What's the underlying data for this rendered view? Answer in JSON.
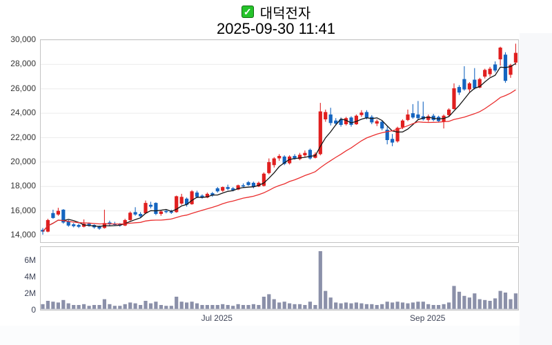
{
  "header": {
    "checkbox_glyph": "✓",
    "stock_name": "대덕전자",
    "timestamp": "2025-09-30 11:41"
  },
  "chart_data": {
    "type": "candlestick_with_volume",
    "title": "대덕전자",
    "datetime_label": "2025-09-30 11:41",
    "legend_position": "none",
    "grid": "horizontal-only",
    "price_axis": {
      "min": 14000,
      "max": 30000,
      "tick_values": [
        30000,
        28000,
        26000,
        24000,
        22000,
        20000,
        18000,
        16000,
        14000
      ],
      "tick_labels": [
        "30,000",
        "28,000",
        "26,000",
        "24,000",
        "22,000",
        "20,000",
        "18,000",
        "16,000",
        "14,000"
      ]
    },
    "volume_axis": {
      "min": 0,
      "max_visible": 7000000,
      "tick_values": [
        6000000,
        4000000,
        2000000,
        0
      ],
      "tick_labels": [
        "6M",
        "4M",
        "2M",
        "0"
      ]
    },
    "x_axis": {
      "labels": [
        {
          "text": "Jul 2025",
          "index": 34
        },
        {
          "text": "Sep 2025",
          "index": 75
        }
      ]
    },
    "candle_format": [
      "open",
      "high",
      "low",
      "close",
      "volume_millions"
    ],
    "candles": [
      [
        14450,
        14600,
        14050,
        14300,
        0.6
      ],
      [
        14300,
        15350,
        14250,
        15250,
        1.0
      ],
      [
        15820,
        16100,
        15350,
        15420,
        0.9
      ],
      [
        15700,
        16250,
        15600,
        16000,
        0.8
      ],
      [
        16100,
        16150,
        14950,
        15050,
        1.1
      ],
      [
        15150,
        15250,
        14700,
        14800,
        0.7
      ],
      [
        14900,
        15000,
        14650,
        14750,
        0.5
      ],
      [
        14850,
        14950,
        14600,
        14700,
        0.5
      ],
      [
        14700,
        15300,
        14650,
        14950,
        0.6
      ],
      [
        14950,
        15050,
        14700,
        14780,
        0.4
      ],
      [
        14850,
        14900,
        14550,
        14650,
        0.5
      ],
      [
        14700,
        14800,
        14450,
        14550,
        0.5
      ],
      [
        14600,
        16100,
        14550,
        15000,
        1.2
      ],
      [
        15050,
        15200,
        14800,
        14900,
        0.6
      ],
      [
        14950,
        15100,
        14800,
        14850,
        0.4
      ],
      [
        14900,
        15000,
        14700,
        14800,
        0.4
      ],
      [
        14800,
        15350,
        14750,
        15250,
        0.6
      ],
      [
        15250,
        15950,
        15200,
        15850,
        0.8
      ],
      [
        15900,
        16300,
        15600,
        15700,
        0.7
      ],
      [
        15750,
        15900,
        15450,
        15550,
        0.5
      ],
      [
        15800,
        16850,
        15750,
        16650,
        1.0
      ],
      [
        16500,
        16750,
        16200,
        16350,
        0.7
      ],
      [
        16650,
        16700,
        15650,
        15750,
        0.9
      ],
      [
        15750,
        16050,
        15600,
        15950,
        0.5
      ],
      [
        16000,
        16150,
        15800,
        15900,
        0.4
      ],
      [
        15950,
        16100,
        15750,
        15850,
        0.4
      ],
      [
        15900,
        17250,
        15850,
        17200,
        1.5
      ],
      [
        16600,
        17400,
        16500,
        17150,
        0.9
      ],
      [
        17000,
        17100,
        16350,
        16500,
        0.8
      ],
      [
        16550,
        17700,
        16500,
        17600,
        0.9
      ],
      [
        17500,
        17650,
        17050,
        17150,
        0.7
      ],
      [
        17250,
        17350,
        17000,
        17100,
        0.5
      ],
      [
        17100,
        17500,
        17050,
        17400,
        0.5
      ],
      [
        17450,
        17550,
        17150,
        17250,
        0.5
      ],
      [
        17850,
        17950,
        17500,
        17600,
        0.5
      ],
      [
        17650,
        18000,
        17550,
        17950,
        0.6
      ],
      [
        17950,
        18150,
        17700,
        17800,
        0.5
      ],
      [
        17850,
        17950,
        17600,
        17700,
        0.4
      ],
      [
        17750,
        18150,
        17700,
        18100,
        0.6
      ],
      [
        18100,
        18250,
        17900,
        18000,
        0.5
      ],
      [
        18350,
        18450,
        18050,
        18120,
        0.5
      ],
      [
        18300,
        18400,
        17850,
        17950,
        0.6
      ],
      [
        18000,
        18400,
        17950,
        18300,
        0.5
      ],
      [
        18050,
        19150,
        18000,
        19050,
        1.5
      ],
      [
        19100,
        20300,
        19000,
        20000,
        1.8
      ],
      [
        19750,
        20400,
        19550,
        20300,
        1.2
      ],
      [
        20300,
        20650,
        20100,
        20500,
        0.8
      ],
      [
        20450,
        20550,
        19750,
        19850,
        0.9
      ],
      [
        19900,
        20550,
        19800,
        20450,
        0.7
      ],
      [
        20500,
        20650,
        20200,
        20300,
        0.6
      ],
      [
        20250,
        20750,
        20150,
        20600,
        0.6
      ],
      [
        20550,
        20950,
        20400,
        20750,
        0.5
      ],
      [
        21000,
        21100,
        20200,
        20300,
        0.9
      ],
      [
        20350,
        20800,
        20300,
        20650,
        0.5
      ],
      [
        20650,
        24850,
        20550,
        24150,
        7.0
      ],
      [
        23500,
        24300,
        23300,
        24100,
        2.2
      ],
      [
        23900,
        24450,
        23000,
        23200,
        1.4
      ],
      [
        23400,
        23600,
        23000,
        23150,
        0.8
      ],
      [
        23500,
        23650,
        22900,
        23050,
        0.7
      ],
      [
        23100,
        23700,
        23000,
        23600,
        0.8
      ],
      [
        23650,
        23750,
        22900,
        23050,
        0.7
      ],
      [
        23100,
        23900,
        23050,
        23800,
        0.8
      ],
      [
        23850,
        24250,
        23700,
        24050,
        0.7
      ],
      [
        24100,
        24250,
        23500,
        23650,
        0.6
      ],
      [
        23700,
        23850,
        23100,
        23250,
        0.6
      ],
      [
        23150,
        23500,
        22950,
        23350,
        0.5
      ],
      [
        23300,
        23400,
        22600,
        22750,
        0.6
      ],
      [
        22650,
        22900,
        21450,
        21800,
        0.9
      ],
      [
        21900,
        22300,
        21300,
        21600,
        0.8
      ],
      [
        21700,
        22900,
        21600,
        22800,
        0.9
      ],
      [
        22850,
        23500,
        22700,
        23400,
        0.8
      ],
      [
        23450,
        24300,
        23350,
        23900,
        0.7
      ],
      [
        24000,
        24750,
        23550,
        23650,
        0.8
      ],
      [
        23900,
        25000,
        23500,
        23600,
        0.9
      ],
      [
        23750,
        24950,
        23400,
        23500,
        0.9
      ],
      [
        23450,
        23900,
        23300,
        23750,
        0.6
      ],
      [
        23800,
        23950,
        23350,
        23450,
        0.5
      ],
      [
        23700,
        23800,
        23250,
        23350,
        0.5
      ],
      [
        23300,
        23900,
        22750,
        23800,
        0.6
      ],
      [
        23850,
        24400,
        23700,
        24300,
        0.8
      ],
      [
        24350,
        26450,
        24300,
        26050,
        2.8
      ],
      [
        26150,
        26300,
        25500,
        25700,
        2.1
      ],
      [
        26800,
        27850,
        25850,
        25950,
        1.6
      ],
      [
        25950,
        26550,
        25750,
        26450,
        1.4
      ],
      [
        26750,
        27700,
        25950,
        26050,
        1.9
      ],
      [
        26100,
        26900,
        26050,
        26800,
        1.2
      ],
      [
        27000,
        27650,
        26850,
        27550,
        1.1
      ],
      [
        27200,
        27800,
        27000,
        27650,
        1.0
      ],
      [
        28000,
        28250,
        27350,
        27500,
        1.3
      ],
      [
        28420,
        29450,
        27900,
        29380,
        2.2
      ],
      [
        28800,
        29000,
        26500,
        26650,
        2.0
      ],
      [
        27150,
        28050,
        26900,
        27950,
        1.2
      ],
      [
        28150,
        29700,
        27950,
        28950,
        1.9
      ]
    ],
    "overlays": [
      {
        "name": "short-moving-average",
        "type": "sma",
        "window": 5,
        "color": "#141414"
      },
      {
        "name": "long-moving-average",
        "type": "sma",
        "window": 20,
        "color": "#ea2d2d"
      }
    ],
    "colors": {
      "up_candle": "#e01f1f",
      "down_candle": "#1565c0",
      "volume_bar": "#8b90a9",
      "grid_line": "#ececec",
      "panel_border": "#c3c3c3",
      "price_tick_text": "#333333",
      "slate_tick_text": "#3d4357",
      "checkbox_green": "#25c32a"
    }
  }
}
